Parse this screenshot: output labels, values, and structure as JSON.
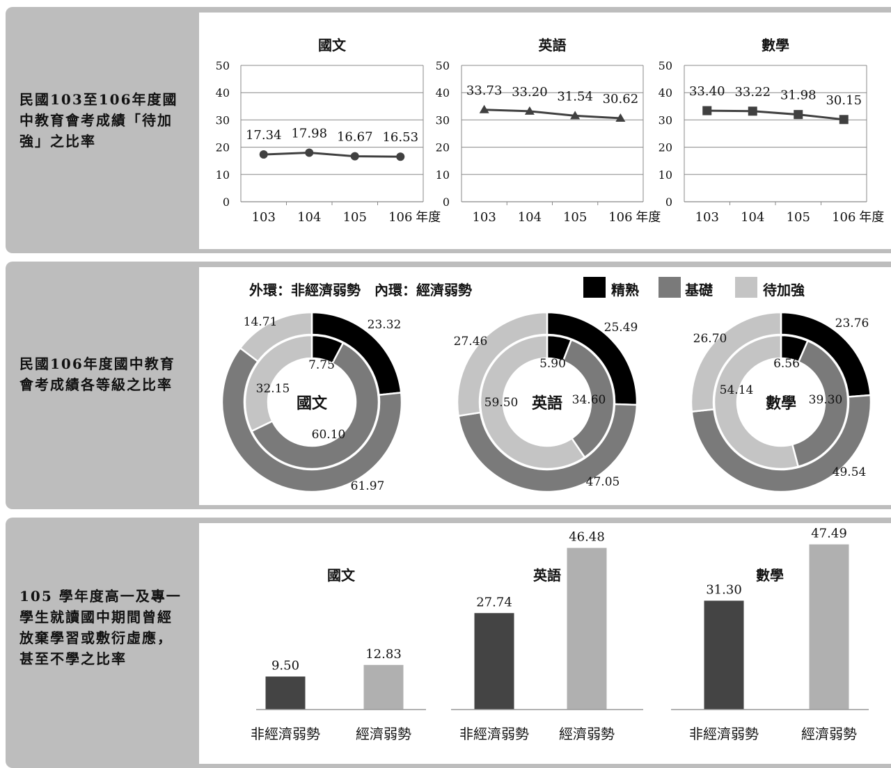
{
  "sections": [
    {
      "label": "民國103至106年度國中教育會考成績「待加強」之比率"
    },
    {
      "label": "民國106年度國中教育會考成績各等級之比率"
    },
    {
      "label": "105 學年度高一及專一學生就讀國中期間曾經放棄學習或敷衍虛應，甚至不學之比率"
    }
  ],
  "donut_header": {
    "ring_note": "外環：非經濟弱勢　內環：經濟弱勢",
    "legend": [
      "精熟",
      "基礎",
      "待加強"
    ]
  },
  "colors": {
    "panel_bg": "#bdbdbd",
    "line": "#404040",
    "mastery": "#000000",
    "basic": "#7a7a7a",
    "needs_improvement": "#c4c4c4",
    "bar_non_disadvantaged": "#444444",
    "bar_disadvantaged": "#b0b0b0"
  },
  "chart_data": [
    {
      "type": "line",
      "title": "國文",
      "categories": [
        "103",
        "104",
        "105",
        "106"
      ],
      "xlabel": "年度",
      "ylim": [
        0,
        50
      ],
      "yticks": [
        0,
        10,
        20,
        30,
        40,
        50
      ],
      "values": [
        17.34,
        17.98,
        16.67,
        16.53
      ],
      "labels": [
        "17.34",
        "17.98",
        "16.67",
        "16.53"
      ],
      "marker": "circle",
      "grid": true
    },
    {
      "type": "line",
      "title": "英語",
      "categories": [
        "103",
        "104",
        "105",
        "106"
      ],
      "xlabel": "年度",
      "ylim": [
        0,
        50
      ],
      "yticks": [
        0,
        10,
        20,
        30,
        40,
        50
      ],
      "values": [
        33.73,
        33.2,
        31.54,
        30.62
      ],
      "labels": [
        "33.73",
        "33.20",
        "31.54",
        "30.62"
      ],
      "marker": "triangle",
      "grid": true
    },
    {
      "type": "line",
      "title": "數學",
      "categories": [
        "103",
        "104",
        "105",
        "106"
      ],
      "xlabel": "年度",
      "ylim": [
        0,
        50
      ],
      "yticks": [
        0,
        10,
        20,
        30,
        40,
        50
      ],
      "values": [
        33.4,
        33.22,
        31.98,
        30.15
      ],
      "labels": [
        "33.40",
        "33.22",
        "31.98",
        "30.15"
      ],
      "marker": "square",
      "grid": true
    },
    {
      "type": "pie",
      "title": "國文",
      "categories": [
        "精熟",
        "基礎",
        "待加強"
      ],
      "series": [
        {
          "name": "非經濟弱勢",
          "values": [
            23.32,
            61.97,
            14.71
          ],
          "labels": [
            "23.32",
            "61.97",
            "14.71"
          ]
        },
        {
          "name": "經濟弱勢",
          "values": [
            7.75,
            60.1,
            32.15
          ],
          "labels": [
            "7.75",
            "60.10",
            "32.15"
          ]
        }
      ]
    },
    {
      "type": "pie",
      "title": "英語",
      "categories": [
        "精熟",
        "基礎",
        "待加強"
      ],
      "series": [
        {
          "name": "非經濟弱勢",
          "values": [
            25.49,
            47.05,
            27.46
          ],
          "labels": [
            "25.49",
            "47.05",
            "27.46"
          ]
        },
        {
          "name": "經濟弱勢",
          "values": [
            5.9,
            34.6,
            59.5
          ],
          "labels": [
            "5.90",
            "34.60",
            "59.50"
          ]
        }
      ]
    },
    {
      "type": "pie",
      "title": "數學",
      "categories": [
        "精熟",
        "基礎",
        "待加強"
      ],
      "series": [
        {
          "name": "非經濟弱勢",
          "values": [
            23.76,
            49.54,
            26.7
          ],
          "labels": [
            "23.76",
            "49.54",
            "26.70"
          ]
        },
        {
          "name": "經濟弱勢",
          "values": [
            6.56,
            39.3,
            54.14
          ],
          "labels": [
            "6.56",
            "39.30",
            "54.14"
          ]
        }
      ]
    },
    {
      "type": "bar",
      "title": "國文",
      "categories": [
        "非經濟弱勢",
        "經濟弱勢"
      ],
      "values": [
        9.5,
        12.83
      ],
      "labels": [
        "9.50",
        "12.83"
      ],
      "ylim": [
        0,
        50
      ]
    },
    {
      "type": "bar",
      "title": "英語",
      "categories": [
        "非經濟弱勢",
        "經濟弱勢"
      ],
      "values": [
        27.74,
        46.48
      ],
      "labels": [
        "27.74",
        "46.48"
      ],
      "ylim": [
        0,
        50
      ]
    },
    {
      "type": "bar",
      "title": "數學",
      "categories": [
        "非經濟弱勢",
        "經濟弱勢"
      ],
      "values": [
        31.3,
        47.49
      ],
      "labels": [
        "31.30",
        "47.49"
      ],
      "ylim": [
        0,
        50
      ]
    }
  ]
}
